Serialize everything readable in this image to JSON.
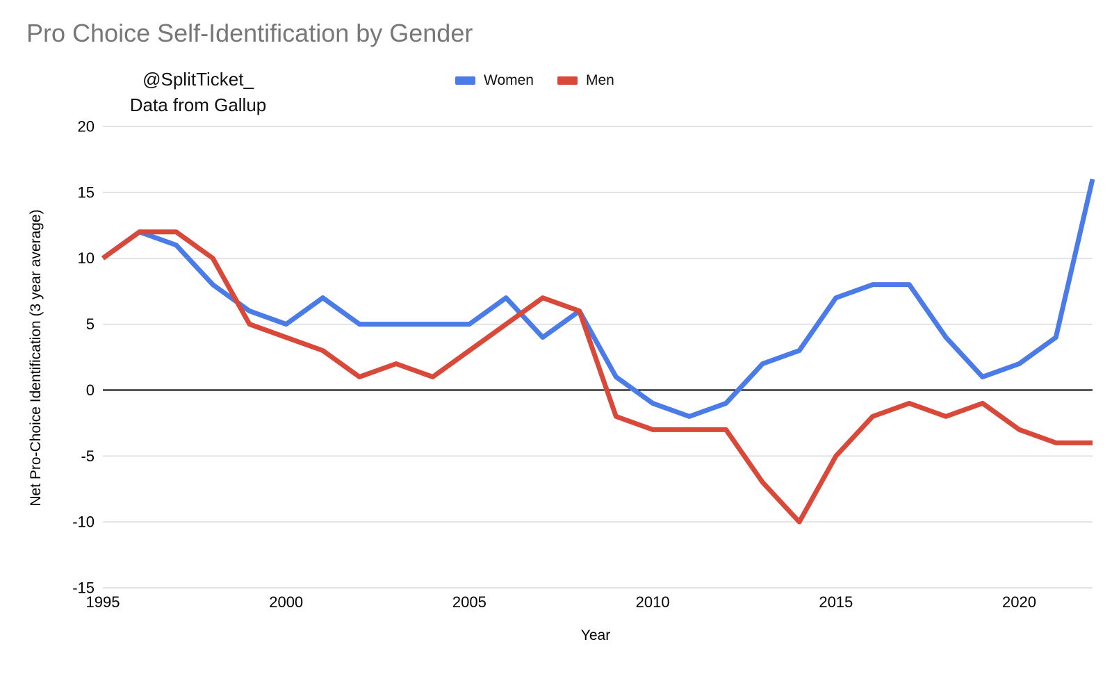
{
  "page": {
    "title": "Pro Choice Self-Identification by Gender"
  },
  "annotation": {
    "line1": "@SplitTicket_",
    "line2": "Data from Gallup"
  },
  "chart_data": {
    "type": "line",
    "title": "Pro Choice Self-Identification by Gender",
    "xlabel": "Year",
    "ylabel": "Net Pro-Choice Identification (3 year average)",
    "x": [
      1995,
      1996,
      1997,
      1998,
      1999,
      2000,
      2001,
      2002,
      2003,
      2004,
      2005,
      2006,
      2007,
      2008,
      2009,
      2010,
      2011,
      2012,
      2013,
      2014,
      2015,
      2016,
      2017,
      2018,
      2019,
      2020,
      2021,
      2022
    ],
    "series": [
      {
        "name": "Women",
        "color": "#4a7be6",
        "values": [
          10,
          12,
          11,
          8,
          6,
          5,
          7,
          5,
          5,
          5,
          5,
          7,
          4,
          6,
          1,
          -1,
          -2,
          -1,
          2,
          3,
          7,
          8,
          8,
          4,
          1,
          2,
          4,
          16
        ]
      },
      {
        "name": "Men",
        "color": "#d9493a",
        "values": [
          10,
          12,
          12,
          10,
          5,
          4,
          3,
          1,
          2,
          1,
          3,
          5,
          7,
          6,
          -2,
          -3,
          -3,
          -3,
          -7,
          -10,
          -5,
          -2,
          -1,
          -2,
          -1,
          -3,
          -4,
          -4
        ]
      }
    ],
    "xticks": [
      1995,
      2000,
      2005,
      2010,
      2015,
      2020
    ],
    "yticks": [
      20,
      15,
      10,
      5,
      0,
      -5,
      -10,
      -15
    ],
    "xlim": [
      1995,
      2022
    ],
    "ylim": [
      -15,
      20
    ],
    "grid": true,
    "legend_position": "top",
    "zero_axis_color": "#000000",
    "gridline_color": "#d9d9d9",
    "title_color": "#777777"
  }
}
